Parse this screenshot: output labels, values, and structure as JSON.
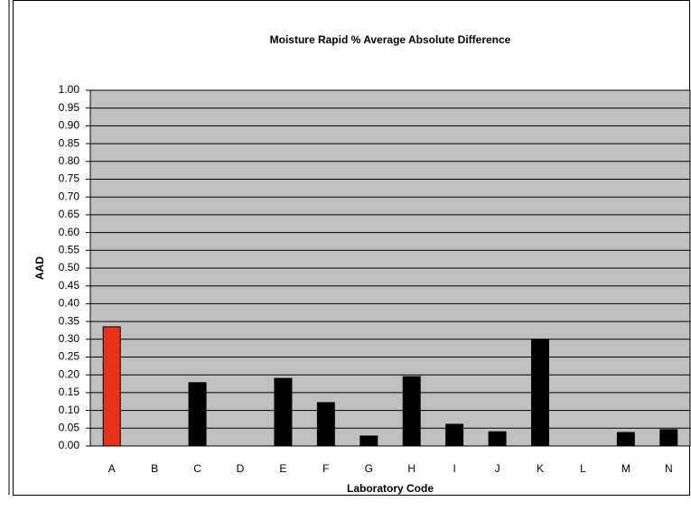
{
  "chart_data": {
    "type": "bar",
    "title": "Moisture Rapid % Average Absolute Difference",
    "x_label": "Laboratory Code",
    "y_label": "AAD",
    "categories": [
      "A",
      "B",
      "C",
      "D",
      "E",
      "F",
      "G",
      "H",
      "I",
      "J",
      "K",
      "L",
      "M",
      "N"
    ],
    "values": [
      0.335,
      0,
      0.178,
      0,
      0.19,
      0.122,
      0.028,
      0.195,
      0.061,
      0.04,
      0.3,
      0,
      0.038,
      0.046
    ],
    "colors": [
      "#e8321a",
      "#000000",
      "#000000",
      "#000000",
      "#000000",
      "#000000",
      "#000000",
      "#000000",
      "#000000",
      "#000000",
      "#000000",
      "#000000",
      "#000000",
      "#000000"
    ],
    "plot_background": "#c0c0c0",
    "ylim": [
      0,
      1
    ],
    "yticks": [
      {
        "value": 0,
        "label": "0.00"
      },
      {
        "value": 0.05,
        "label": "0.05"
      },
      {
        "value": 0.1,
        "label": "0.10"
      },
      {
        "value": 0.15,
        "label": "0.15"
      },
      {
        "value": 0.2,
        "label": "0.20"
      },
      {
        "value": 0.25,
        "label": "0.25"
      },
      {
        "value": 0.3,
        "label": "0.30"
      },
      {
        "value": 0.35,
        "label": "0.35"
      },
      {
        "value": 0.4,
        "label": "0.40"
      },
      {
        "value": 0.45,
        "label": "0.45"
      },
      {
        "value": 0.5,
        "label": "0.50"
      },
      {
        "value": 0.55,
        "label": "0.55"
      },
      {
        "value": 0.6,
        "label": "0.60"
      },
      {
        "value": 0.65,
        "label": "0.65"
      },
      {
        "value": 0.7,
        "label": "0.70"
      },
      {
        "value": 0.75,
        "label": "0.75"
      },
      {
        "value": 0.8,
        "label": "0.80"
      },
      {
        "value": 0.85,
        "label": "0.85"
      },
      {
        "value": 0.9,
        "label": "0.90"
      },
      {
        "value": 0.95,
        "label": "0.95"
      },
      {
        "value": 1,
        "label": "1.00"
      }
    ],
    "grid": true
  }
}
